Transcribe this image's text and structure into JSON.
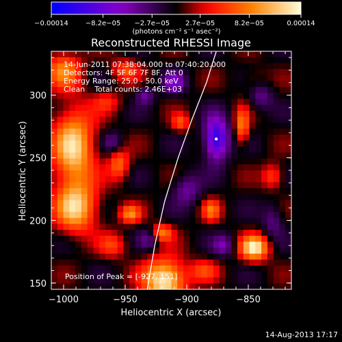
{
  "chart_data": {
    "type": "heatmap",
    "title": "Reconstructed RHESSI Image",
    "xlabel": "Heliocentric X (arcsec)",
    "ylabel": "Heliocentric Y (arcsec)",
    "xlim": [
      -1010,
      -815
    ],
    "ylim": [
      145,
      335
    ],
    "xticks": [
      -1000,
      -950,
      -900,
      -850
    ],
    "yticks": [
      150,
      200,
      250,
      300
    ],
    "xtick_labels": [
      "−1000",
      "−950",
      "−900",
      "−850"
    ],
    "ytick_labels": [
      "150",
      "200",
      "250",
      "300"
    ],
    "colorbar": {
      "range": [
        -0.00014,
        0.00014
      ],
      "ticks": [
        -0.00014,
        -8.2e-05,
        -2.7e-05,
        2.7e-05,
        8.2e-05,
        0.00014
      ],
      "tick_labels": [
        "−0.00014",
        "−8.2e−05",
        "−2.7e−05",
        "2.7e−05",
        "8.2e−05",
        "0.00014"
      ],
      "units": "(photons cm⁻² s⁻¹ asec⁻²)",
      "colors": [
        "#0000ff",
        "#8a00c8",
        "#000000",
        "#ff0000",
        "#ff8000",
        "#ffffd8"
      ]
    },
    "annotations": [
      "14-Jun-2011 07:38:04.000 to 07:40:20.000",
      "Detectors: 4F 5F 6F 7F 8F, Att 0",
      "Energy Range: 25.0 - 50.0 keV",
      "Clean    Total counts: 2.46E+03"
    ],
    "peak_text": "Position of Peak = [-927, 151]",
    "peak_marker": {
      "x": -876,
      "y": 265
    },
    "limb": [
      [
        -932,
        145
      ],
      [
        -926,
        180
      ],
      [
        -918,
        215
      ],
      [
        -907,
        250
      ],
      [
        -896,
        280
      ],
      [
        -884,
        310
      ],
      [
        -876,
        335
      ]
    ],
    "sources": [
      {
        "x": -992,
        "y": 258,
        "sx": 12,
        "sy": 22,
        "amp": 0.00012
      },
      {
        "x": -990,
        "y": 210,
        "sx": 12,
        "sy": 14,
        "amp": 0.00011
      },
      {
        "x": -1000,
        "y": 320,
        "sx": 10,
        "sy": 10,
        "amp": 8e-05
      },
      {
        "x": -955,
        "y": 245,
        "sx": 6,
        "sy": 9,
        "amp": 7e-05
      },
      {
        "x": -965,
        "y": 295,
        "sx": 8,
        "sy": 6,
        "amp": 4e-05
      },
      {
        "x": -918,
        "y": 152,
        "sx": 12,
        "sy": 12,
        "amp": 0.00014
      },
      {
        "x": -920,
        "y": 190,
        "sx": 6,
        "sy": 5,
        "amp": 8e-05
      },
      {
        "x": -946,
        "y": 205,
        "sx": 6,
        "sy": 5,
        "amp": 8e-05
      },
      {
        "x": -960,
        "y": 180,
        "sx": 8,
        "sy": 7,
        "amp": 5e-05
      },
      {
        "x": -845,
        "y": 178,
        "sx": 8,
        "sy": 7,
        "amp": 0.00013
      },
      {
        "x": -855,
        "y": 275,
        "sx": 4,
        "sy": 10,
        "amp": 8e-05
      },
      {
        "x": -880,
        "y": 208,
        "sx": 5,
        "sy": 6,
        "amp": 7e-05
      },
      {
        "x": -905,
        "y": 278,
        "sx": 5,
        "sy": 5,
        "amp": 6e-05
      },
      {
        "x": -886,
        "y": 160,
        "sx": 8,
        "sy": 6,
        "amp": 5e-05
      },
      {
        "x": -830,
        "y": 235,
        "sx": 6,
        "sy": 7,
        "amp": 6e-05
      },
      {
        "x": -950,
        "y": 320,
        "sx": 8,
        "sy": 6,
        "amp": 6e-05
      },
      {
        "x": -845,
        "y": 310,
        "sx": 8,
        "sy": 8,
        "amp": 3e-05
      },
      {
        "x": -876,
        "y": 265,
        "sx": 7,
        "sy": 12,
        "amp": -0.00012
      },
      {
        "x": -910,
        "y": 310,
        "sx": 6,
        "sy": 6,
        "amp": -6e-05
      },
      {
        "x": -934,
        "y": 300,
        "sx": 5,
        "sy": 5,
        "amp": -5e-05
      },
      {
        "x": -840,
        "y": 300,
        "sx": 7,
        "sy": 8,
        "amp": -5e-05
      },
      {
        "x": -900,
        "y": 225,
        "sx": 8,
        "sy": 9,
        "amp": -5e-05
      },
      {
        "x": -870,
        "y": 180,
        "sx": 6,
        "sy": 6,
        "amp": -5e-05
      },
      {
        "x": -930,
        "y": 185,
        "sx": 6,
        "sy": 6,
        "amp": -4e-05
      },
      {
        "x": -960,
        "y": 262,
        "sx": 6,
        "sy": 6,
        "amp": -4e-05
      },
      {
        "x": -830,
        "y": 200,
        "sx": 6,
        "sy": 10,
        "amp": -4e-05
      }
    ]
  },
  "footer_date": "14-Aug-2013 17:17"
}
